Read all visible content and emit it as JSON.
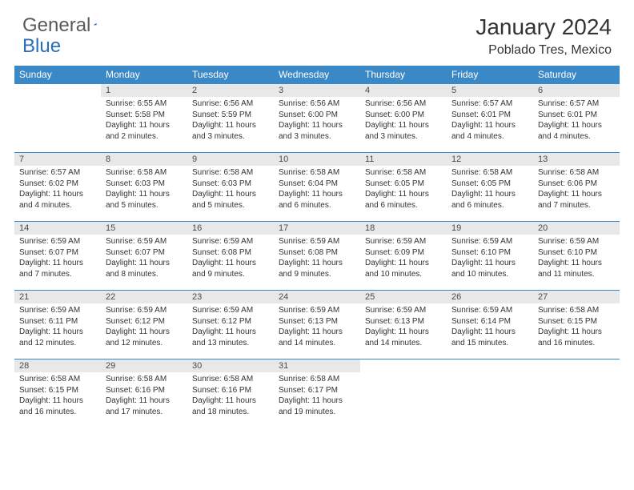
{
  "logo": {
    "part1": "General",
    "part2": "Blue"
  },
  "title": "January 2024",
  "location": "Poblado Tres, Mexico",
  "headers": [
    "Sunday",
    "Monday",
    "Tuesday",
    "Wednesday",
    "Thursday",
    "Friday",
    "Saturday"
  ],
  "colors": {
    "header_bg": "#3b88c7",
    "header_text": "#ffffff",
    "daynum_bg": "#e8e8e8",
    "rule_color": "#3b88c7",
    "logo_gray": "#5a5a5a",
    "logo_blue": "#2a6db8",
    "background": "#ffffff",
    "text": "#333333"
  },
  "typography": {
    "title_fontsize": 28,
    "location_fontsize": 16,
    "header_fontsize": 12,
    "daynum_fontsize": 11,
    "body_fontsize": 10,
    "font_family": "Arial"
  },
  "weeks": [
    [
      {
        "n": "",
        "lines": []
      },
      {
        "n": "1",
        "lines": [
          "Sunrise: 6:55 AM",
          "Sunset: 5:58 PM",
          "Daylight: 11 hours",
          "and 2 minutes."
        ]
      },
      {
        "n": "2",
        "lines": [
          "Sunrise: 6:56 AM",
          "Sunset: 5:59 PM",
          "Daylight: 11 hours",
          "and 3 minutes."
        ]
      },
      {
        "n": "3",
        "lines": [
          "Sunrise: 6:56 AM",
          "Sunset: 6:00 PM",
          "Daylight: 11 hours",
          "and 3 minutes."
        ]
      },
      {
        "n": "4",
        "lines": [
          "Sunrise: 6:56 AM",
          "Sunset: 6:00 PM",
          "Daylight: 11 hours",
          "and 3 minutes."
        ]
      },
      {
        "n": "5",
        "lines": [
          "Sunrise: 6:57 AM",
          "Sunset: 6:01 PM",
          "Daylight: 11 hours",
          "and 4 minutes."
        ]
      },
      {
        "n": "6",
        "lines": [
          "Sunrise: 6:57 AM",
          "Sunset: 6:01 PM",
          "Daylight: 11 hours",
          "and 4 minutes."
        ]
      }
    ],
    [
      {
        "n": "7",
        "lines": [
          "Sunrise: 6:57 AM",
          "Sunset: 6:02 PM",
          "Daylight: 11 hours",
          "and 4 minutes."
        ]
      },
      {
        "n": "8",
        "lines": [
          "Sunrise: 6:58 AM",
          "Sunset: 6:03 PM",
          "Daylight: 11 hours",
          "and 5 minutes."
        ]
      },
      {
        "n": "9",
        "lines": [
          "Sunrise: 6:58 AM",
          "Sunset: 6:03 PM",
          "Daylight: 11 hours",
          "and 5 minutes."
        ]
      },
      {
        "n": "10",
        "lines": [
          "Sunrise: 6:58 AM",
          "Sunset: 6:04 PM",
          "Daylight: 11 hours",
          "and 6 minutes."
        ]
      },
      {
        "n": "11",
        "lines": [
          "Sunrise: 6:58 AM",
          "Sunset: 6:05 PM",
          "Daylight: 11 hours",
          "and 6 minutes."
        ]
      },
      {
        "n": "12",
        "lines": [
          "Sunrise: 6:58 AM",
          "Sunset: 6:05 PM",
          "Daylight: 11 hours",
          "and 6 minutes."
        ]
      },
      {
        "n": "13",
        "lines": [
          "Sunrise: 6:58 AM",
          "Sunset: 6:06 PM",
          "Daylight: 11 hours",
          "and 7 minutes."
        ]
      }
    ],
    [
      {
        "n": "14",
        "lines": [
          "Sunrise: 6:59 AM",
          "Sunset: 6:07 PM",
          "Daylight: 11 hours",
          "and 7 minutes."
        ]
      },
      {
        "n": "15",
        "lines": [
          "Sunrise: 6:59 AM",
          "Sunset: 6:07 PM",
          "Daylight: 11 hours",
          "and 8 minutes."
        ]
      },
      {
        "n": "16",
        "lines": [
          "Sunrise: 6:59 AM",
          "Sunset: 6:08 PM",
          "Daylight: 11 hours",
          "and 9 minutes."
        ]
      },
      {
        "n": "17",
        "lines": [
          "Sunrise: 6:59 AM",
          "Sunset: 6:08 PM",
          "Daylight: 11 hours",
          "and 9 minutes."
        ]
      },
      {
        "n": "18",
        "lines": [
          "Sunrise: 6:59 AM",
          "Sunset: 6:09 PM",
          "Daylight: 11 hours",
          "and 10 minutes."
        ]
      },
      {
        "n": "19",
        "lines": [
          "Sunrise: 6:59 AM",
          "Sunset: 6:10 PM",
          "Daylight: 11 hours",
          "and 10 minutes."
        ]
      },
      {
        "n": "20",
        "lines": [
          "Sunrise: 6:59 AM",
          "Sunset: 6:10 PM",
          "Daylight: 11 hours",
          "and 11 minutes."
        ]
      }
    ],
    [
      {
        "n": "21",
        "lines": [
          "Sunrise: 6:59 AM",
          "Sunset: 6:11 PM",
          "Daylight: 11 hours",
          "and 12 minutes."
        ]
      },
      {
        "n": "22",
        "lines": [
          "Sunrise: 6:59 AM",
          "Sunset: 6:12 PM",
          "Daylight: 11 hours",
          "and 12 minutes."
        ]
      },
      {
        "n": "23",
        "lines": [
          "Sunrise: 6:59 AM",
          "Sunset: 6:12 PM",
          "Daylight: 11 hours",
          "and 13 minutes."
        ]
      },
      {
        "n": "24",
        "lines": [
          "Sunrise: 6:59 AM",
          "Sunset: 6:13 PM",
          "Daylight: 11 hours",
          "and 14 minutes."
        ]
      },
      {
        "n": "25",
        "lines": [
          "Sunrise: 6:59 AM",
          "Sunset: 6:13 PM",
          "Daylight: 11 hours",
          "and 14 minutes."
        ]
      },
      {
        "n": "26",
        "lines": [
          "Sunrise: 6:59 AM",
          "Sunset: 6:14 PM",
          "Daylight: 11 hours",
          "and 15 minutes."
        ]
      },
      {
        "n": "27",
        "lines": [
          "Sunrise: 6:58 AM",
          "Sunset: 6:15 PM",
          "Daylight: 11 hours",
          "and 16 minutes."
        ]
      }
    ],
    [
      {
        "n": "28",
        "lines": [
          "Sunrise: 6:58 AM",
          "Sunset: 6:15 PM",
          "Daylight: 11 hours",
          "and 16 minutes."
        ]
      },
      {
        "n": "29",
        "lines": [
          "Sunrise: 6:58 AM",
          "Sunset: 6:16 PM",
          "Daylight: 11 hours",
          "and 17 minutes."
        ]
      },
      {
        "n": "30",
        "lines": [
          "Sunrise: 6:58 AM",
          "Sunset: 6:16 PM",
          "Daylight: 11 hours",
          "and 18 minutes."
        ]
      },
      {
        "n": "31",
        "lines": [
          "Sunrise: 6:58 AM",
          "Sunset: 6:17 PM",
          "Daylight: 11 hours",
          "and 19 minutes."
        ]
      },
      {
        "n": "",
        "lines": []
      },
      {
        "n": "",
        "lines": []
      },
      {
        "n": "",
        "lines": []
      }
    ]
  ]
}
